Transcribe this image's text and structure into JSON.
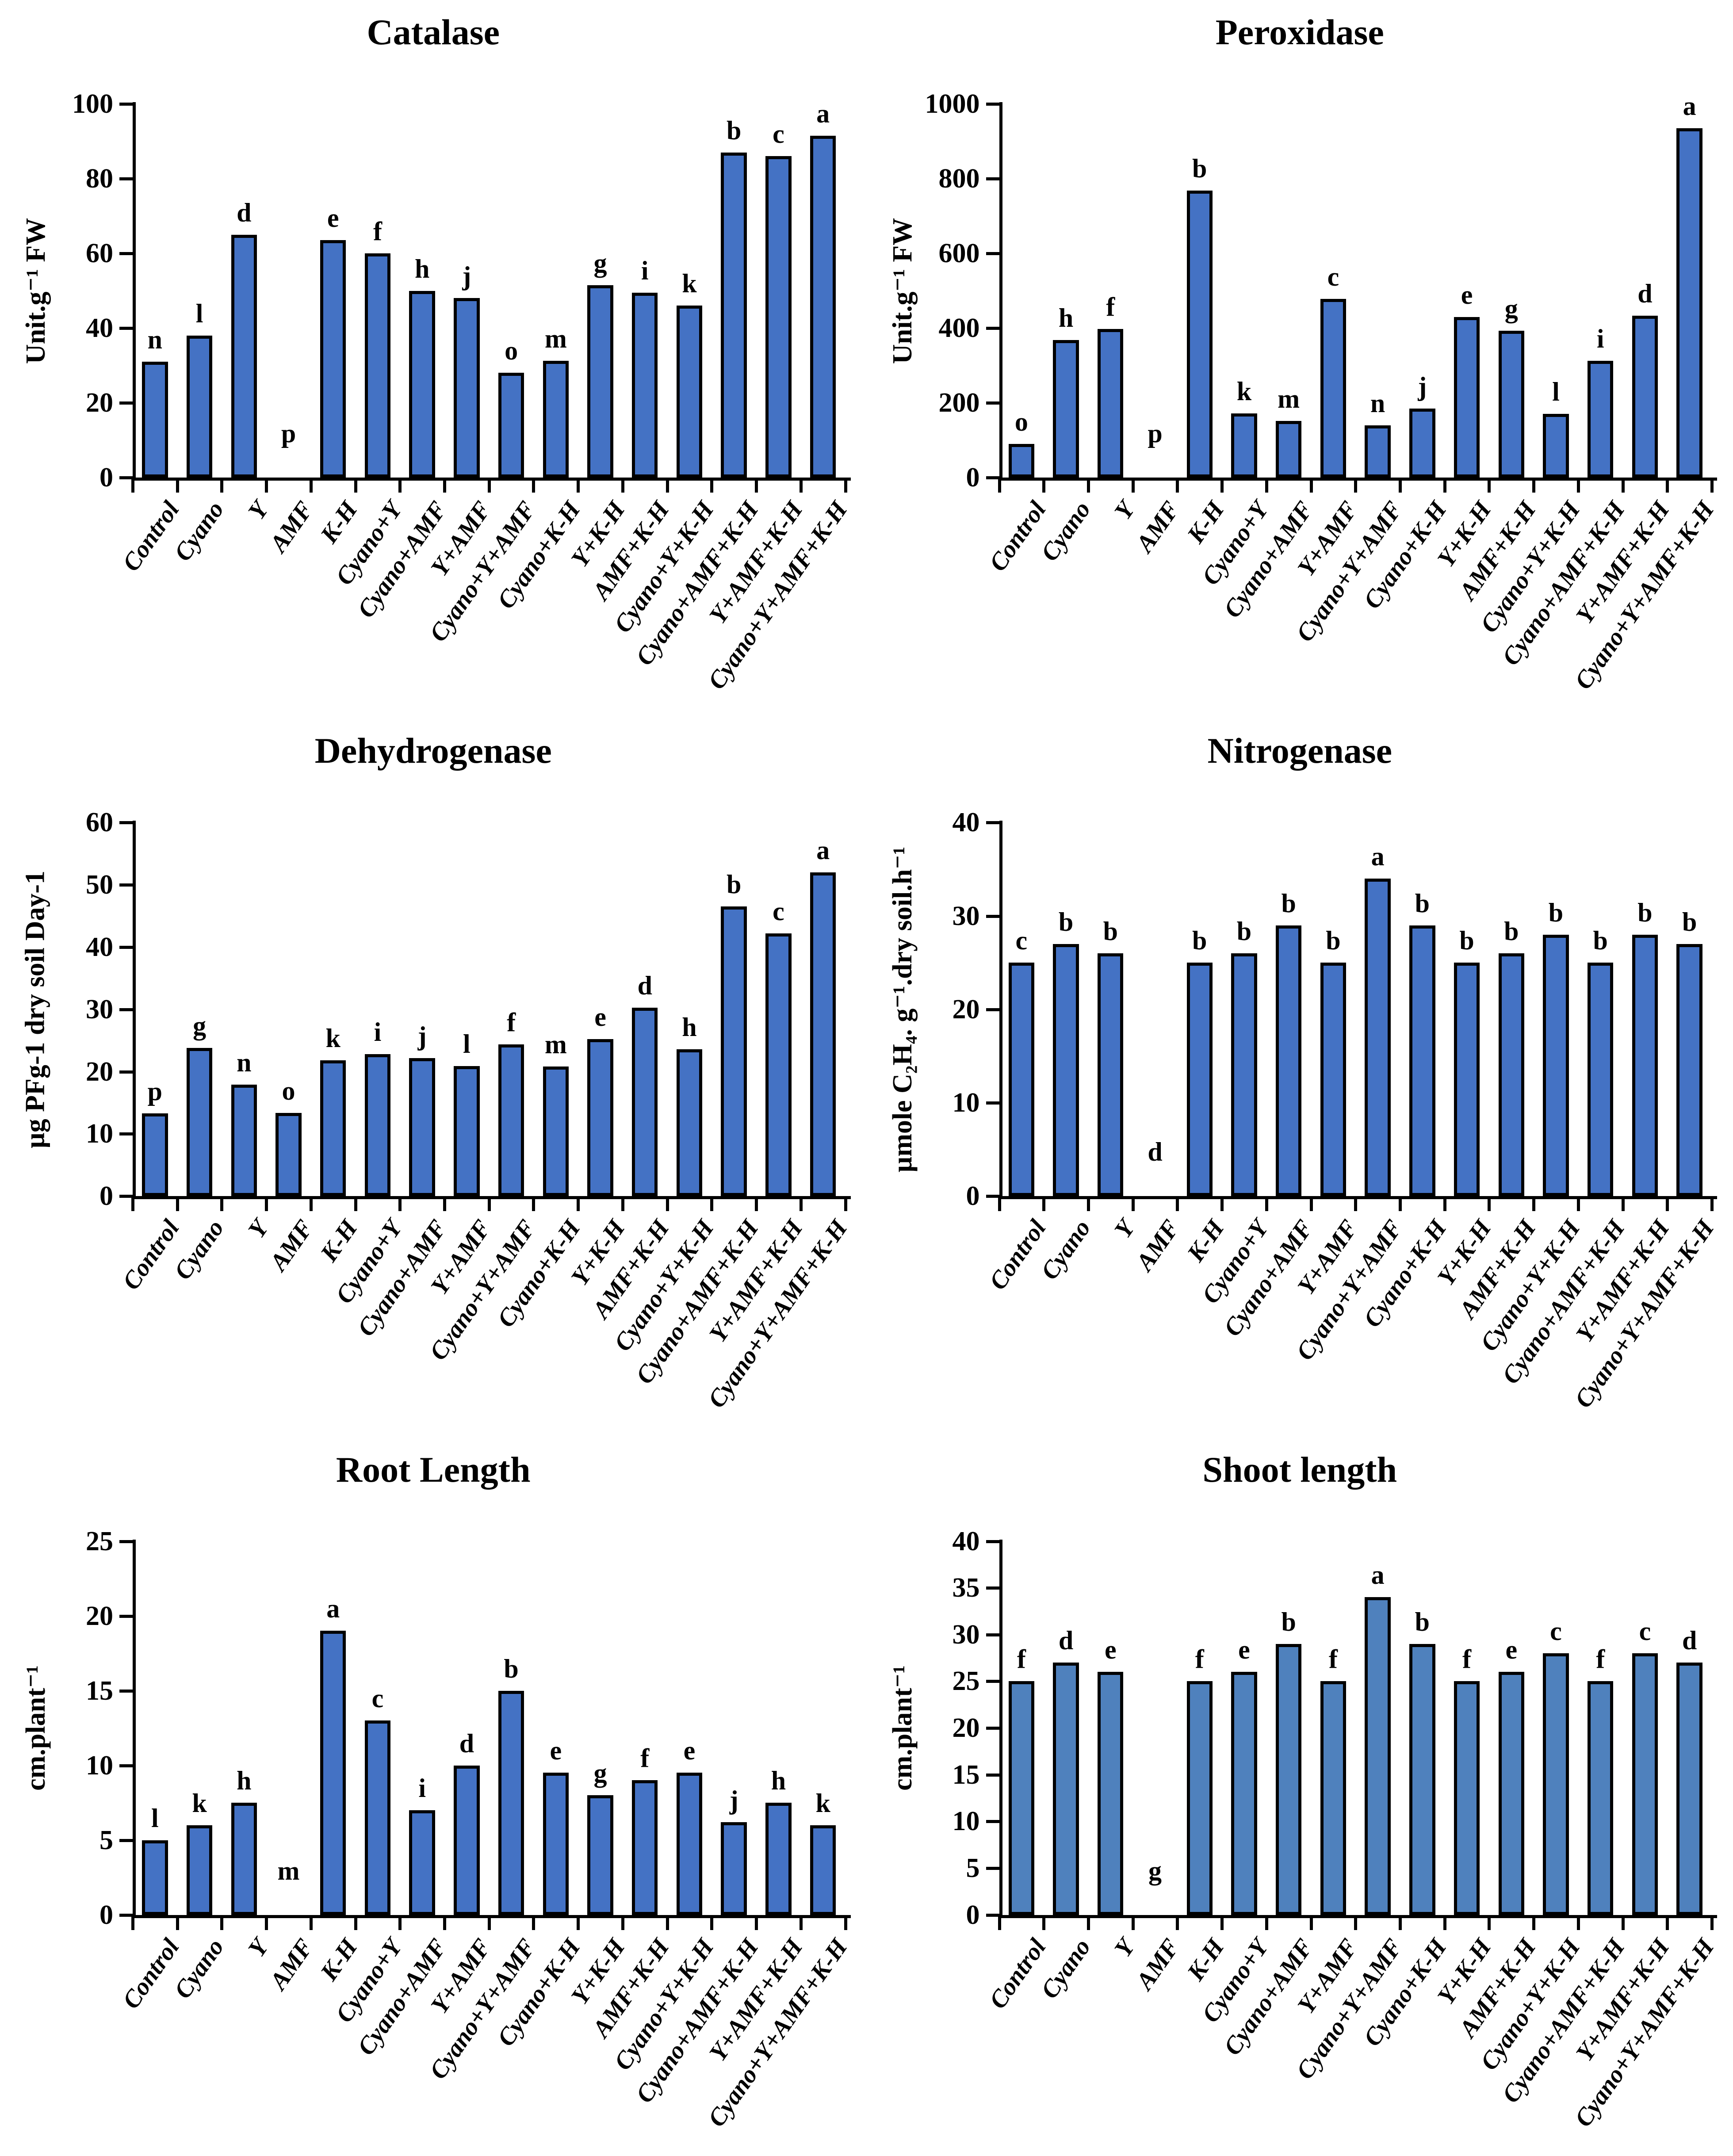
{
  "chart_data": [
    {
      "key": "catalase",
      "type": "bar",
      "title": "Catalase",
      "ylabel": "Unit.g⁻¹ FW",
      "xlabel": "",
      "ylim": [
        0,
        100
      ],
      "yticks": [
        0,
        20,
        40,
        60,
        80,
        100
      ],
      "grid": false,
      "legend": null,
      "bar_color": "#4472c4",
      "categories": [
        "Control",
        "Cyano",
        "Y",
        "AMF",
        "K-H",
        "Cyano+Y",
        "Cyano+AMF",
        "Y+AMF",
        "Cyano+Y+AMF",
        "Cyano+K-H",
        "Y+K-H",
        "AMF+K-H",
        "Cyano+Y+K-H",
        "Cyano+AMF+K-H",
        "Y+AMF+K-H",
        "Cyano+Y+AMF+K-H"
      ],
      "values": [
        31,
        38,
        65,
        0,
        63.5,
        60,
        50,
        48,
        28,
        31.3,
        51.5,
        49.5,
        46,
        87,
        86,
        91.5
      ],
      "sig_letters": [
        "n",
        "l",
        "d",
        "p",
        "e",
        "f",
        "h",
        "j",
        "o",
        "m",
        "g",
        "i",
        "k",
        "b",
        "c",
        "a"
      ]
    },
    {
      "key": "peroxidase",
      "type": "bar",
      "title": "Peroxidase",
      "ylabel": "Unit.g⁻¹ FW",
      "xlabel": "",
      "ylim": [
        0,
        1000
      ],
      "yticks": [
        0,
        200,
        400,
        600,
        800,
        1000
      ],
      "grid": false,
      "legend": null,
      "bar_color": "#4472c4",
      "categories": [
        "Control",
        "Cyano",
        "Y",
        "AMF",
        "K-H",
        "Cyano+Y",
        "Cyano+AMF",
        "Y+AMF",
        "Cyano+Y+AMF",
        "Cyano+K-H",
        "Y+K-H",
        "AMF+K-H",
        "Cyano+Y+K-H",
        "Cyano+AMF+K-H",
        "Y+AMF+K-H",
        "Cyano+Y+AMF+K-H"
      ],
      "values": [
        90,
        368,
        398,
        0,
        768,
        172,
        152,
        478,
        140,
        185,
        430,
        393,
        170,
        312,
        433,
        935
      ],
      "sig_letters": [
        "o",
        "h",
        "f",
        "p",
        "b",
        "k",
        "m",
        "c",
        "n",
        "j",
        "e",
        "g",
        "l",
        "i",
        "d",
        "a"
      ]
    },
    {
      "key": "dehydrogenase",
      "type": "bar",
      "title": "Dehydrogenase",
      "ylabel": "µg PFg-1 dry soil Day-1",
      "xlabel": "",
      "ylim": [
        0,
        60
      ],
      "yticks": [
        0,
        10,
        20,
        30,
        40,
        50,
        60
      ],
      "grid": false,
      "legend": null,
      "bar_color": "#4472c4",
      "categories": [
        "Control",
        "Cyano",
        "Y",
        "AMF",
        "K-H",
        "Cyano+Y",
        "Cyano+AMF",
        "Y+AMF",
        "Cyano+Y+AMF",
        "Cyano+K-H",
        "Y+K-H",
        "AMF+K-H",
        "Cyano+Y+K-H",
        "Cyano+AMF+K-H",
        "Y+AMF+K-H",
        "Cyano+Y+AMF+K-H"
      ],
      "values": [
        13.3,
        23.8,
        17.9,
        13.4,
        21.8,
        22.8,
        22.2,
        20.9,
        24.4,
        20.8,
        25.2,
        30.3,
        23.6,
        46.5,
        42.2,
        52
      ],
      "sig_letters": [
        "p",
        "g",
        "n",
        "o",
        "k",
        "i",
        "j",
        "l",
        "f",
        "m",
        "e",
        "d",
        "h",
        "b",
        "c",
        "a"
      ]
    },
    {
      "key": "nitrogenase",
      "type": "bar",
      "title": "Nitrogenase",
      "ylabel": "µmole C₂H₄. g⁻¹.dry soil.h⁻¹",
      "xlabel": "",
      "ylim": [
        0,
        40
      ],
      "yticks": [
        0,
        10,
        20,
        30,
        40
      ],
      "grid": false,
      "legend": null,
      "bar_color": "#4472c4",
      "categories": [
        "Control",
        "Cyano",
        "Y",
        "AMF",
        "K-H",
        "Cyano+Y",
        "Cyano+AMF",
        "Y+AMF",
        "Cyano+Y+AMF",
        "Cyano+K-H",
        "Y+K-H",
        "AMF+K-H",
        "Cyano+Y+K-H",
        "Cyano+AMF+K-H",
        "Y+AMF+K-H",
        "Cyano+Y+AMF+K-H"
      ],
      "values": [
        25,
        27,
        26,
        0,
        25,
        26,
        29,
        25,
        34,
        29,
        25,
        26,
        28,
        25,
        28,
        27
      ],
      "sig_letters": [
        "c",
        "b",
        "b",
        "d",
        "b",
        "b",
        "b",
        "b",
        "a",
        "b",
        "b",
        "b",
        "b",
        "b",
        "b",
        "b"
      ]
    },
    {
      "key": "root-length",
      "type": "bar",
      "title": "Root Length",
      "ylabel": "cm.plant⁻¹",
      "xlabel": "",
      "ylim": [
        0,
        25
      ],
      "yticks": [
        0,
        5,
        10,
        15,
        20,
        25
      ],
      "grid": false,
      "legend": null,
      "bar_color": "#4472c4",
      "categories": [
        "Control",
        "Cyano",
        "Y",
        "AMF",
        "K-H",
        "Cyano+Y",
        "Cyano+AMF",
        "Y+AMF",
        "Cyano+Y+AMF",
        "Cyano+K-H",
        "Y+K-H",
        "AMF+K-H",
        "Cyano+Y+K-H",
        "Cyano+AMF+K-H",
        "Y+AMF+K-H",
        "Cyano+Y+AMF+K-H"
      ],
      "values": [
        5,
        6,
        7.5,
        0,
        19,
        13,
        7,
        10,
        15,
        9.5,
        8,
        9,
        9.5,
        6.2,
        7.5,
        6
      ],
      "sig_letters": [
        "l",
        "k",
        "h",
        "m",
        "a",
        "c",
        "i",
        "d",
        "b",
        "e",
        "g",
        "f",
        "e",
        "j",
        "h",
        "k"
      ]
    },
    {
      "key": "shoot-length",
      "type": "bar",
      "title": "Shoot length",
      "ylabel": "cm.plant⁻¹",
      "xlabel": "",
      "ylim": [
        0,
        40
      ],
      "yticks": [
        0,
        5,
        10,
        15,
        20,
        25,
        30,
        35,
        40
      ],
      "grid": false,
      "legend": null,
      "bar_color": "#4f81bd",
      "categories": [
        "Control",
        "Cyano",
        "Y",
        "AMF",
        "K-H",
        "Cyano+Y",
        "Cyano+AMF",
        "Y+AMF",
        "Cyano+Y+AMF",
        "Cyano+K-H",
        "Y+K-H",
        "AMF+K-H",
        "Cyano+Y+K-H",
        "Cyano+AMF+K-H",
        "Y+AMF+K-H",
        "Cyano+Y+AMF+K-H"
      ],
      "values": [
        25,
        27,
        26,
        0,
        25,
        26,
        29,
        25,
        34,
        29,
        25,
        26,
        28,
        25,
        28,
        27
      ],
      "sig_letters": [
        "f",
        "d",
        "e",
        "g",
        "f",
        "e",
        "b",
        "f",
        "a",
        "b",
        "f",
        "e",
        "c",
        "f",
        "c",
        "d"
      ]
    }
  ]
}
